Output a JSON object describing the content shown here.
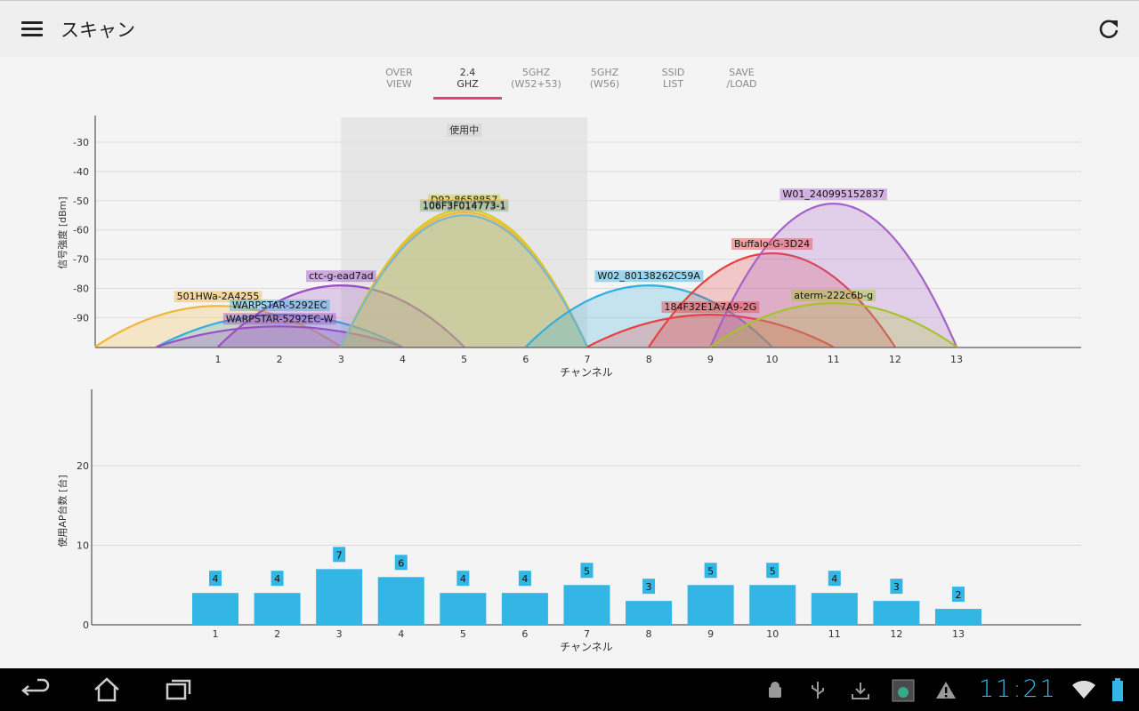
{
  "app": {
    "title": "スキャン"
  },
  "tabs": [
    {
      "line1": "OVER",
      "line2": "VIEW",
      "active": false
    },
    {
      "line1": "2.4",
      "line2": "GHZ",
      "active": true
    },
    {
      "line1": "5GHZ",
      "line2": "(W52+53)",
      "active": false
    },
    {
      "line1": "5GHZ",
      "line2": "(W56)",
      "active": false
    },
    {
      "line1": "SSID",
      "line2": "LIST",
      "active": false
    },
    {
      "line1": "SAVE",
      "line2": "/LOAD",
      "active": false
    }
  ],
  "signal_chart": {
    "ylabel": "信号強度 [dBm]",
    "xlabel": "チャンネル",
    "in_use_label": "使用中",
    "y_ticks": [
      -30,
      -40,
      -50,
      -60,
      -70,
      -80,
      -90
    ],
    "x_ticks": [
      1,
      2,
      3,
      4,
      5,
      6,
      7,
      8,
      9,
      10,
      11,
      12,
      13
    ]
  },
  "count_chart": {
    "ylabel": "使用AP台数 [台]",
    "xlabel": "チャンネル",
    "y_ticks": [
      0,
      10,
      20
    ],
    "x_ticks": [
      1,
      2,
      3,
      4,
      5,
      6,
      7,
      8,
      9,
      10,
      11,
      12,
      13
    ]
  },
  "chart_data": [
    {
      "type": "area",
      "ylabel": "信号強度 [dBm]",
      "xlabel": "チャンネル",
      "xlim": [
        -1,
        15
      ],
      "ylim": [
        -100,
        -20
      ],
      "highlight_range": [
        3,
        7
      ],
      "highlight_label": "使用中",
      "grid": true,
      "series": [
        {
          "name": "501HWa-2A4255",
          "center": 1,
          "peak": -86,
          "color": "#f4b63a"
        },
        {
          "name": "WARPSTAR-5292EC",
          "center": 2,
          "peak": -89,
          "color": "#33aee0"
        },
        {
          "name": "WARPSTAR-5292EC-W",
          "center": 2,
          "peak": -93,
          "color": "#9b4fc4"
        },
        {
          "name": "ctc-g-ead7ad",
          "center": 3,
          "peak": -79,
          "color": "#9b4fc4"
        },
        {
          "name": "D92-8658857",
          "center": 5,
          "peak": -53,
          "color": "#d6cc1c"
        },
        {
          "name": "106F3F014773-1",
          "center": 5,
          "peak": -54,
          "color": "#f4b63a"
        },
        {
          "name": "106F3F014773-1",
          "center": 5,
          "peak": -55,
          "color": "#7ab8c8"
        },
        {
          "name": "W02_80138262C59A",
          "center": 8,
          "peak": -79,
          "color": "#33aee0"
        },
        {
          "name": "184F32E1A7A9-2G",
          "center": 9,
          "peak": -89,
          "color": "#e84040"
        },
        {
          "name": "Buffalo-G-3D24",
          "center": 10,
          "peak": -68,
          "color": "#e84040"
        },
        {
          "name": "W01_240995152837",
          "center": 11,
          "peak": -51,
          "color": "#a661c9"
        },
        {
          "name": "aterm-222c6b-g",
          "center": 11,
          "peak": -85,
          "color": "#a6c42a"
        }
      ]
    },
    {
      "type": "bar",
      "ylabel": "使用AP台数 [台]",
      "xlabel": "チャンネル",
      "categories": [
        1,
        2,
        3,
        4,
        5,
        6,
        7,
        8,
        9,
        10,
        11,
        12,
        13
      ],
      "values": [
        4,
        4,
        7,
        6,
        4,
        4,
        5,
        3,
        5,
        5,
        4,
        3,
        2
      ],
      "ylim": [
        0,
        30
      ],
      "color": "#33b5e5"
    }
  ],
  "navbar": {
    "back_icon": "back-arrow-icon",
    "home_icon": "home-icon",
    "recent_icon": "recent-apps-icon",
    "clock": "11:21"
  }
}
